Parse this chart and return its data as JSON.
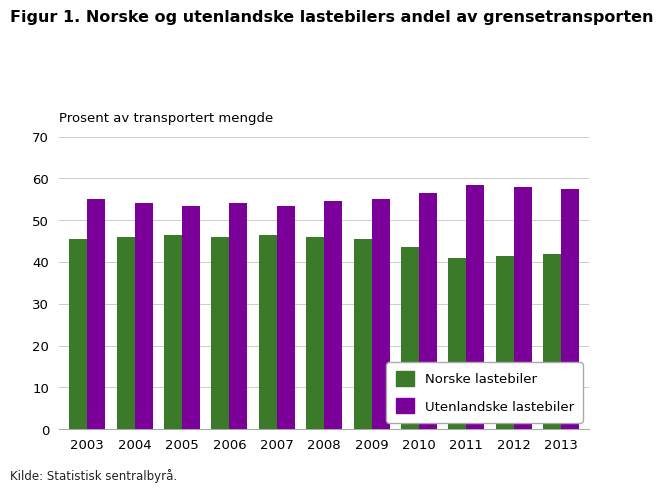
{
  "title": "Figur 1. Norske og utenlandske lastebilers andel av grensetransporten",
  "ylabel": "Prosent av transportert mengde",
  "source": "Kilde: Statistisk sentralbyrå.",
  "years": [
    2003,
    2004,
    2005,
    2006,
    2007,
    2008,
    2009,
    2010,
    2011,
    2012,
    2013
  ],
  "norske": [
    45.5,
    46.0,
    46.5,
    46.0,
    46.5,
    46.0,
    45.5,
    43.5,
    41.0,
    41.5,
    42.0
  ],
  "utenlandske": [
    55.0,
    54.0,
    53.5,
    54.0,
    53.5,
    54.5,
    55.0,
    56.5,
    58.5,
    58.0,
    57.5
  ],
  "norske_color": "#3a7a28",
  "utenlandske_color": "#7b0099",
  "ylim": [
    0,
    70
  ],
  "yticks": [
    0,
    10,
    20,
    30,
    40,
    50,
    60,
    70
  ],
  "bar_width": 0.38,
  "legend_norske": "Norske lastebiler",
  "legend_utenlandske": "Utenlandske lastebiler",
  "background_color": "#ffffff",
  "grid_color": "#cccccc",
  "title_fontsize": 11.5,
  "label_fontsize": 9.5,
  "tick_fontsize": 9.5,
  "source_fontsize": 8.5
}
